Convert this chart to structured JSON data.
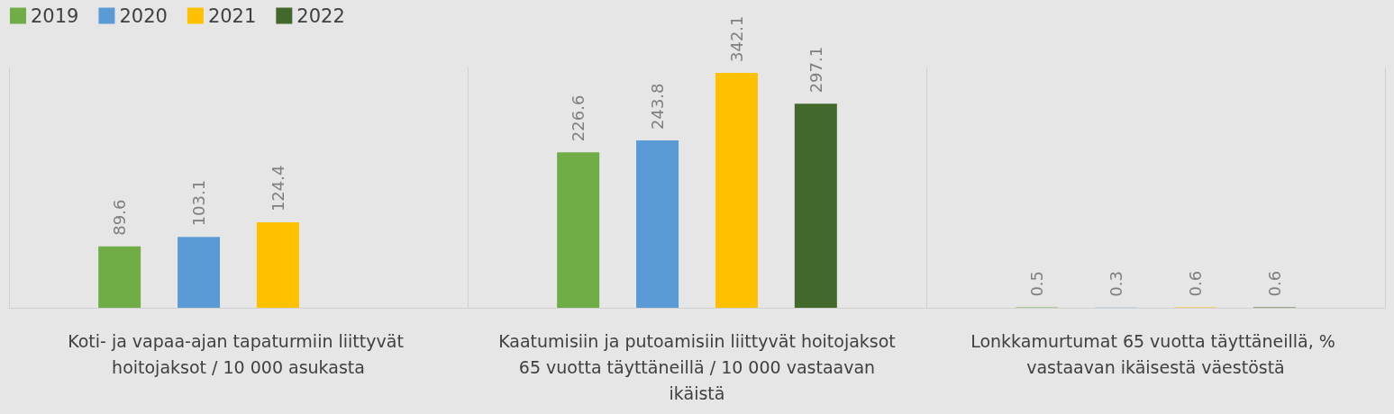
{
  "chart_data": {
    "type": "bar",
    "categories": [
      "Koti- ja vapaa-ajan tapaturmiin liittyvät hoitojaksot / 10 000 asukasta",
      "Kaatumisiin ja putoamisiin liittyvät hoitojaksot 65 vuotta täyttäneillä / 10 000 vastaavan ikäistä",
      "Lonkkamurtumat 65 vuotta täyttäneillä, % vastaavan ikäisestä väestöstä"
    ],
    "series": [
      {
        "name": "2019",
        "color": "#70ad47",
        "values": [
          89.6,
          226.6,
          0.5
        ]
      },
      {
        "name": "2020",
        "color": "#5b9bd5",
        "values": [
          103.1,
          243.8,
          0.3
        ]
      },
      {
        "name": "2021",
        "color": "#ffc000",
        "values": [
          124.4,
          342.1,
          0.6
        ]
      },
      {
        "name": "2022",
        "color": "#43682b",
        "values": [
          null,
          297.1,
          0.6
        ]
      }
    ],
    "data_labels": true,
    "legend": "top left",
    "grid": "x"
  }
}
